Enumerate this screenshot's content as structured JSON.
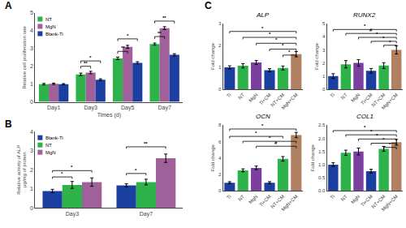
{
  "chart_data": [
    {
      "type": "bar",
      "xlabel": "Times (d)",
      "ylabel": "Relative cell proliferation rate",
      "categories": [
        "Day1",
        "Day3",
        "Day5",
        "Day7"
      ],
      "series": [
        {
          "name": "NT",
          "color": "#2db34a",
          "values": [
            1.0,
            1.55,
            2.45,
            3.25
          ],
          "errors": [
            0.04,
            0.07,
            0.07,
            0.06
          ]
        },
        {
          "name": "MgN",
          "color": "#a0609a",
          "values": [
            1.02,
            1.65,
            3.1,
            4.15
          ],
          "errors": [
            0.04,
            0.07,
            0.08,
            0.08
          ]
        },
        {
          "name": "Blank-Ti",
          "color": "#1a3fa0",
          "values": [
            1.0,
            1.25,
            2.2,
            2.65
          ],
          "errors": [
            0.03,
            0.05,
            0.06,
            0.06
          ]
        }
      ],
      "ylim": [
        0,
        5
      ],
      "yticks": [
        0,
        1,
        2,
        3,
        4,
        5
      ],
      "grid": false,
      "legend": "upper left",
      "annotations": [
        {
          "text": "A"
        },
        {
          "text": "**",
          "category": "Day3",
          "series": [
            "NT",
            "MgN"
          ],
          "y": 1.88
        },
        {
          "text": "*",
          "category": "Day3",
          "series": [
            "NT",
            "Blank-Ti"
          ],
          "y": 2.18
        },
        {
          "text": "**",
          "category": "Day5",
          "series": [
            "NT",
            "MgN"
          ],
          "y": 2.72
        },
        {
          "text": "*",
          "category": "Day5",
          "series": [
            "NT",
            "Blank-Ti"
          ],
          "y": 3.42
        },
        {
          "text": "**",
          "category": "Day7",
          "series": [
            "NT",
            "MgN"
          ],
          "y": 3.55
        },
        {
          "text": "**",
          "category": "Day7",
          "series": [
            "NT",
            "Blank-Ti"
          ],
          "y": 4.42
        }
      ]
    },
    {
      "type": "bar",
      "ylabel": "Relative activity of ALP\nμg/mg of protein",
      "categories": [
        "Day3",
        "Day7"
      ],
      "series": [
        {
          "name": "Blank-Ti",
          "color": "#1a3fa0",
          "values": [
            0.88,
            1.18
          ],
          "errors": [
            0.09,
            0.08
          ]
        },
        {
          "name": "NT",
          "color": "#2db34a",
          "values": [
            1.2,
            1.35
          ],
          "errors": [
            0.18,
            0.15
          ]
        },
        {
          "name": "MgN",
          "color": "#a0609a",
          "values": [
            1.35,
            2.6
          ],
          "errors": [
            0.22,
            0.22
          ]
        }
      ],
      "ylim": [
        0,
        4
      ],
      "yticks": [
        0,
        1,
        2,
        3,
        4
      ],
      "grid": false,
      "legend": "upper left",
      "annotations": [
        {
          "text": "B"
        },
        {
          "text": "*",
          "category": "Day3",
          "series": [
            "Blank-Ti",
            "NT"
          ],
          "y": 1.52
        },
        {
          "text": "*",
          "category": "Day3",
          "series": [
            "Blank-Ti",
            "MgN"
          ],
          "y": 1.85
        },
        {
          "text": "*",
          "category": "Day7",
          "series": [
            "Blank-Ti",
            "NT"
          ],
          "y": 1.7
        },
        {
          "text": "**",
          "category": "Day7",
          "series": [
            "Blank-Ti",
            "MgN"
          ],
          "y": 3.1
        }
      ]
    },
    {
      "type": "bar",
      "title": "ALP",
      "ylabel": "Fold change",
      "categories": [
        "Ti",
        "NT",
        "MgN",
        "Ti+CM",
        "NT+CM",
        "MgN+CM"
      ],
      "colors": [
        "#1a3fa0",
        "#2db34a",
        "#7b3fa0",
        "#1a3fa0",
        "#2db34a",
        "#b08060"
      ],
      "values": [
        1.0,
        1.07,
        1.22,
        0.87,
        0.97,
        1.6
      ],
      "errors": [
        0.07,
        0.1,
        0.09,
        0.07,
        0.09,
        0.12
      ],
      "ylim": [
        0,
        3
      ],
      "yticks": [
        0,
        1,
        2,
        3
      ],
      "grid": false,
      "annotations": [
        {
          "text": "C"
        },
        {
          "text": "*",
          "x": [
            "Ti",
            "MgN+CM"
          ],
          "y": 2.55
        },
        {
          "text": "*",
          "x": [
            "NT",
            "MgN+CM"
          ],
          "y": 2.28
        },
        {
          "text": "*",
          "x": [
            "MgN",
            "MgN+CM"
          ],
          "y": 2.01
        },
        {
          "text": "*",
          "x": [
            "Ti+CM",
            "MgN+CM"
          ],
          "y": 1.74
        },
        {
          "text": "*",
          "x": [
            "NT+CM",
            "MgN+CM"
          ],
          "y": 1.47
        }
      ]
    },
    {
      "type": "bar",
      "title": "RUNX2",
      "ylabel": "Fold change",
      "categories": [
        "Ti",
        "NT",
        "MgN",
        "Ti+CM",
        "NT+CM",
        "MgN+CM"
      ],
      "colors": [
        "#1a3fa0",
        "#2db34a",
        "#7b3fa0",
        "#1a3fa0",
        "#2db34a",
        "#b08060"
      ],
      "values": [
        1.0,
        1.9,
        2.0,
        1.4,
        1.8,
        3.0
      ],
      "errors": [
        0.18,
        0.28,
        0.25,
        0.18,
        0.22,
        0.32
      ],
      "ylim": [
        0,
        5
      ],
      "yticks": [
        0,
        1,
        2,
        3,
        4,
        5
      ],
      "grid": false,
      "annotations": [
        {
          "text": "*",
          "x": [
            "Ti",
            "MgN+CM"
          ],
          "y": 4.4
        },
        {
          "text": "#",
          "x": [
            "NT",
            "MgN+CM"
          ],
          "y": 4.1
        },
        {
          "text": "*",
          "x": [
            "MgN",
            "MgN+CM"
          ],
          "y": 3.8
        },
        {
          "text": "*",
          "x": [
            "Ti+CM",
            "MgN+CM"
          ],
          "y": 3.5
        },
        {
          "text": "*",
          "x": [
            "NT+CM",
            "MgN+CM"
          ],
          "y": 3.2
        }
      ]
    },
    {
      "type": "bar",
      "title": "OCN",
      "ylabel": "Fold change",
      "categories": [
        "Ti",
        "NT",
        "MgN",
        "Ti+CM",
        "NT+CM",
        "MgN+CM"
      ],
      "colors": [
        "#1a3fa0",
        "#2db34a",
        "#7b3fa0",
        "#1a3fa0",
        "#2db34a",
        "#b08060"
      ],
      "values": [
        1.0,
        2.5,
        2.8,
        1.0,
        3.9,
        6.8
      ],
      "errors": [
        0.12,
        0.18,
        0.22,
        0.12,
        0.28,
        0.32
      ],
      "ylim": [
        0,
        8
      ],
      "yticks": [
        0,
        2,
        4,
        6,
        8
      ],
      "grid": false,
      "annotations": [
        {
          "text": "*",
          "x": [
            "Ti",
            "MgN+CM"
          ],
          "y": 7.3
        },
        {
          "text": "*",
          "x": [
            "Ti",
            "NT+CM"
          ],
          "y": 6.4
        },
        {
          "text": "*",
          "x": [
            "NT",
            "MgN+CM"
          ],
          "y": 5.8
        },
        {
          "text": "#",
          "x": [
            "MgN",
            "MgN+CM"
          ],
          "y": 5.2
        }
      ]
    },
    {
      "type": "bar",
      "title": "COL1",
      "ylabel": "Fold change",
      "categories": [
        "Ti",
        "NT",
        "MgN",
        "Ti+CM",
        "NT+CM",
        "MgN+CM"
      ],
      "colors": [
        "#1a3fa0",
        "#2db34a",
        "#7b3fa0",
        "#1a3fa0",
        "#2db34a",
        "#b08060"
      ],
      "values": [
        1.0,
        1.45,
        1.5,
        0.75,
        1.6,
        1.85
      ],
      "errors": [
        0.07,
        0.1,
        0.13,
        0.07,
        0.09,
        0.11
      ],
      "ylim": [
        0,
        2.5
      ],
      "yticks": [
        {
          "value": 0.0,
          "label": "0.0"
        },
        0.5,
        {
          "value": 1.0,
          "label": "1.0"
        },
        1.5,
        {
          "value": 2.0,
          "label": "2.0"
        },
        2.5
      ],
      "grid": false,
      "annotations": [
        {
          "text": "*",
          "x": [
            "Ti",
            "MgN+CM"
          ],
          "y": 2.22
        },
        {
          "text": "*",
          "x": [
            "NT",
            "MgN+CM"
          ],
          "y": 2.06
        },
        {
          "text": "*",
          "x": [
            "MgN",
            "MgN+CM"
          ],
          "y": 1.9
        },
        {
          "text": "*",
          "x": [
            "Ti+CM",
            "MgN+CM"
          ],
          "y": 1.74
        },
        {
          "text": "*",
          "x": [
            "NT+CM",
            "MgN+CM"
          ],
          "y": 1.58
        }
      ]
    }
  ]
}
